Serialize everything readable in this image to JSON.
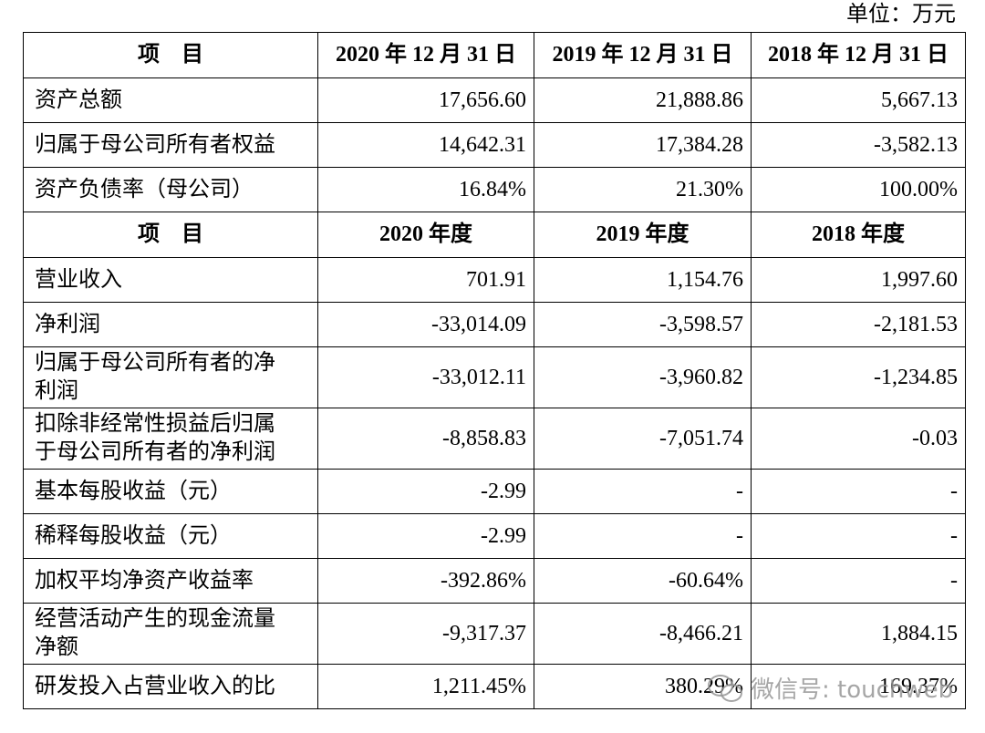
{
  "unit": "单位：万元",
  "table": {
    "sections": [
      {
        "header": [
          "项　目",
          "2020 年 12 月 31 日",
          "2019 年 12 月 31 日",
          "2018 年 12 月 31 日"
        ],
        "rows": [
          [
            "资产总额",
            "17,656.60",
            "21,888.86",
            "5,667.13"
          ],
          [
            "归属于母公司所有者权益",
            "14,642.31",
            "17,384.28",
            "-3,582.13"
          ],
          [
            "资产负债率（母公司）",
            "16.84%",
            "21.30%",
            "100.00%"
          ]
        ]
      },
      {
        "header": [
          "项　目",
          "2020 年度",
          "2019 年度",
          "2018 年度"
        ],
        "rows": [
          [
            "营业收入",
            "701.91",
            "1,154.76",
            "1,997.60"
          ],
          [
            "净利润",
            "-33,014.09",
            "-3,598.57",
            "-2,181.53"
          ],
          [
            "归属于母公司所有者的净利润",
            "-33,012.11",
            "-3,960.82",
            "-1,234.85"
          ],
          [
            "扣除非经常性损益后归属于母公司所有者的净利润",
            "-8,858.83",
            "-7,051.74",
            "-0.03"
          ],
          [
            "基本每股收益（元）",
            "-2.99",
            "-",
            "-"
          ],
          [
            "稀释每股收益（元）",
            "-2.99",
            "-",
            "-"
          ],
          [
            "加权平均净资产收益率",
            "-392.86%",
            "-60.64%",
            "-"
          ],
          [
            "经营活动产生的现金流量净额",
            "-9,317.37",
            "-8,466.21",
            "1,884.15"
          ],
          [
            "研发投入占营业收入的比",
            "1,211.45%",
            "380.29%",
            "169.37%"
          ]
        ]
      }
    ]
  },
  "watermark": "微信号: touchweb"
}
